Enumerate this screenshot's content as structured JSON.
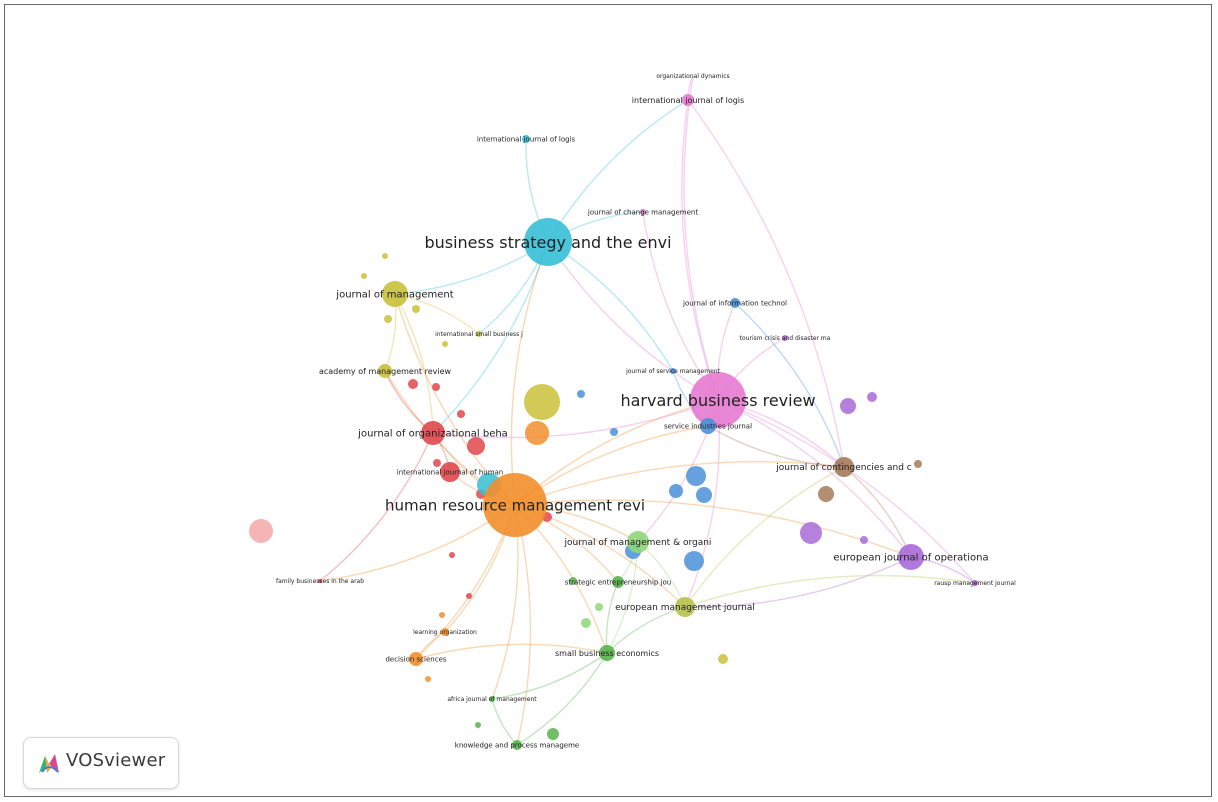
{
  "app": {
    "name": "VOSviewer"
  },
  "colors": {
    "red": "#e0474c",
    "orange": "#f28e2b",
    "yellow": "#c9c13a",
    "green": "#59b34c",
    "blue": "#4a90d9",
    "cyan": "#37bfd6",
    "purple": "#a86ad8",
    "brown": "#a57a5a",
    "pink": "#e57ad0",
    "lightpink": "#f4a8a8",
    "lightgreen": "#8fd67a",
    "olive": "#b5c24a"
  },
  "nodes": [
    {
      "id": "hrmr",
      "label": "human resource management revi",
      "cluster": "orange",
      "weight": 5
    },
    {
      "id": "hbr",
      "label": "harvard business review",
      "cluster": "pink",
      "weight": 5
    },
    {
      "id": "bste",
      "label": "business strategy and the envi",
      "cluster": "cyan",
      "weight": 5
    },
    {
      "id": "jom",
      "label": "journal of management",
      "cluster": "yellow",
      "weight": 3
    },
    {
      "id": "job",
      "label": "journal of organizational beha",
      "cluster": "red",
      "weight": 3
    },
    {
      "id": "jcc",
      "label": "journal of contingencies and c",
      "cluster": "brown",
      "weight": 3
    },
    {
      "id": "ejo",
      "label": "european journal of operationa",
      "cluster": "purple",
      "weight": 3
    },
    {
      "id": "jmo",
      "label": "journal of management & organi",
      "cluster": "lightgreen",
      "weight": 3
    },
    {
      "id": "emj",
      "label": "european management journal",
      "cluster": "olive",
      "weight": 3
    },
    {
      "id": "sbe",
      "label": "small business economics",
      "cluster": "green",
      "weight": 2
    },
    {
      "id": "amr",
      "label": "academy of management review",
      "cluster": "yellow",
      "weight": 2
    },
    {
      "id": "ijl1",
      "label": "international journal of logis",
      "cluster": "pink",
      "weight": 2
    },
    {
      "id": "ijl2",
      "label": "international journal of logis",
      "cluster": "cyan",
      "weight": 1
    },
    {
      "id": "od",
      "label": "organizational dynamics",
      "cluster": "pink",
      "weight": 0
    },
    {
      "id": "jcm",
      "label": "journal of change management",
      "cluster": "pink",
      "weight": 1
    },
    {
      "id": "jit",
      "label": "journal of information technol",
      "cluster": "blue",
      "weight": 1
    },
    {
      "id": "tcd",
      "label": "tourism crisis and disaster ma",
      "cluster": "purple",
      "weight": 0
    },
    {
      "id": "isb",
      "label": "international small business j",
      "cluster": "yellow",
      "weight": 0
    },
    {
      "id": "jsm",
      "label": "journal of service management",
      "cluster": "blue",
      "weight": 0
    },
    {
      "id": "sij",
      "label": "service industries journal",
      "cluster": "blue",
      "weight": 1
    },
    {
      "id": "ijh",
      "label": "international journal of human",
      "cluster": "red",
      "weight": 1
    },
    {
      "id": "sej",
      "label": "strategic entrepreneurship jou",
      "cluster": "green",
      "weight": 1
    },
    {
      "id": "fba",
      "label": "family businesses in the arab",
      "cluster": "red",
      "weight": 0
    },
    {
      "id": "lo",
      "label": "learning organization",
      "cluster": "orange",
      "weight": 0
    },
    {
      "id": "ds",
      "label": "decision sciences",
      "cluster": "orange",
      "weight": 1
    },
    {
      "id": "rmj",
      "label": "rausp management journal",
      "cluster": "purple",
      "weight": 0
    },
    {
      "id": "ajm",
      "label": "africa journal of management",
      "cluster": "green",
      "weight": 0
    },
    {
      "id": "kpm",
      "label": "knowledge and process manageme",
      "cluster": "green",
      "weight": 1
    }
  ]
}
